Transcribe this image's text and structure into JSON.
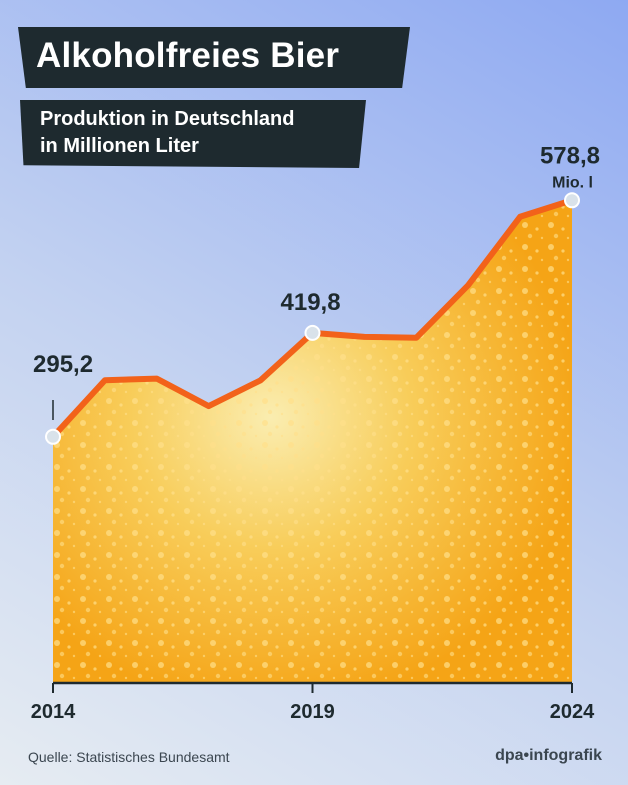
{
  "chart_data": {
    "type": "area",
    "title": "Alkoholfreies Bier",
    "subtitle": [
      "Produktion in Deutschland",
      "in Millionen Liter"
    ],
    "x": [
      2014,
      2015,
      2016,
      2017,
      2018,
      2019,
      2020,
      2021,
      2022,
      2023,
      2024
    ],
    "values": [
      295.2,
      363,
      365,
      332,
      363,
      419.8,
      415,
      414,
      477,
      559,
      578.8
    ],
    "x_tick_labels": [
      "2014",
      "2019",
      "2024"
    ],
    "data_labels": [
      {
        "x": 2014,
        "text": "295,2"
      },
      {
        "x": 2019,
        "text": "419,8"
      },
      {
        "x": 2024,
        "text": "578,8",
        "unit": "Mio. l"
      }
    ],
    "ylim": [
      0,
      600
    ],
    "grid": false,
    "colors": {
      "line": "#f2621a",
      "fill": "#f6a81c",
      "fill_light": "#f9e7a2",
      "marker": "#d9e2ea",
      "title_bg": "#1e2a2f"
    }
  },
  "footer": {
    "source": "Quelle: Statistisches Bundesamt",
    "logo": "dpa•infografik"
  }
}
